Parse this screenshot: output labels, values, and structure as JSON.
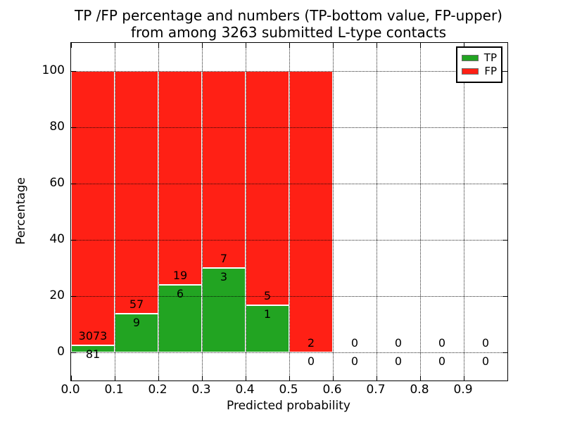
{
  "title": {
    "line1": "TP /FP percentage and numbers (TP-bottom value, FP-upper)",
    "line2": "from among 3263 submitted L-type contacts"
  },
  "axes": {
    "xlabel": "Predicted probability",
    "ylabel": "Percentage"
  },
  "legend": {
    "tp_label": "TP",
    "fp_label": "FP"
  },
  "colors": {
    "tp_green": "#22a422",
    "fp_red": "#ff2015",
    "bar_edge": "#ffffff",
    "grid": "#000000",
    "frame": "#000000"
  },
  "chart_data": {
    "type": "bar",
    "stacked": true,
    "title": "TP /FP percentage and numbers (TP-bottom value, FP-upper) from among 3263 submitted L-type contacts",
    "xlabel": "Predicted probability",
    "ylabel": "Percentage",
    "total_contacts": 3263,
    "bins": [
      [
        0.0,
        0.1
      ],
      [
        0.1,
        0.2
      ],
      [
        0.2,
        0.3
      ],
      [
        0.3,
        0.4
      ],
      [
        0.4,
        0.5
      ],
      [
        0.5,
        0.6
      ],
      [
        0.6,
        0.7
      ],
      [
        0.7,
        0.8
      ],
      [
        0.8,
        0.9
      ],
      [
        0.9,
        1.0
      ]
    ],
    "categories": [
      "0.0-0.1",
      "0.1-0.2",
      "0.2-0.3",
      "0.3-0.4",
      "0.4-0.5",
      "0.5-0.6",
      "0.6-0.7",
      "0.7-0.8",
      "0.8-0.9",
      "0.9-1.0"
    ],
    "series": [
      {
        "name": "TP",
        "color": "#22a422",
        "counts": [
          81,
          9,
          6,
          3,
          1,
          0,
          0,
          0,
          0,
          0
        ],
        "percent": [
          2.568,
          13.636,
          24.0,
          30.0,
          16.667,
          0,
          0,
          0,
          0,
          0
        ]
      },
      {
        "name": "FP",
        "color": "#ff2015",
        "counts": [
          3073,
          57,
          19,
          7,
          5,
          2,
          0,
          0,
          0,
          0
        ],
        "percent": [
          97.432,
          86.364,
          76.0,
          70.0,
          83.333,
          100.0,
          0,
          0,
          0,
          0
        ]
      }
    ],
    "xticks": [
      0.0,
      0.1,
      0.2,
      0.3,
      0.4,
      0.5,
      0.6,
      0.7,
      0.8,
      0.9
    ],
    "yticks": [
      0,
      20,
      40,
      60,
      80,
      100
    ],
    "xlim": [
      0,
      1
    ],
    "ylim": [
      -10,
      110
    ],
    "grid": true,
    "legend_position": "upper right"
  }
}
